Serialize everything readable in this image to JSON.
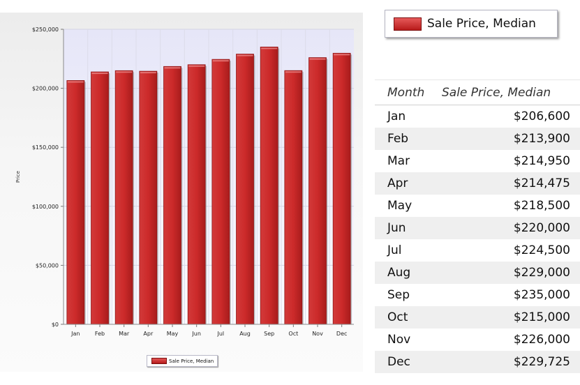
{
  "chart_data": {
    "type": "bar",
    "categories": [
      "Jan",
      "Feb",
      "Mar",
      "Apr",
      "May",
      "Jun",
      "Jul",
      "Aug",
      "Sep",
      "Oct",
      "Nov",
      "Dec"
    ],
    "series": [
      {
        "name": "Sale Price, Median",
        "values": [
          206600,
          213900,
          214950,
          214475,
          218500,
          220000,
          224500,
          229000,
          235000,
          215000,
          226000,
          229725
        ]
      }
    ],
    "ylabel": "Price",
    "yticks": [
      "$0",
      "$50,000",
      "$100,000",
      "$150,000",
      "$200,000",
      "$250,000"
    ],
    "ylim": [
      0,
      250000
    ],
    "grid": true,
    "legend": "bottom",
    "color": "#cc2a2a"
  },
  "legend": {
    "label": "Sale Price, Median"
  },
  "table": {
    "headers": [
      "Month",
      "Sale Price, Median"
    ],
    "rows": [
      [
        "Jan",
        "$206,600"
      ],
      [
        "Feb",
        "$213,900"
      ],
      [
        "Mar",
        "$214,950"
      ],
      [
        "Apr",
        "$214,475"
      ],
      [
        "May",
        "$218,500"
      ],
      [
        "Jun",
        "$220,000"
      ],
      [
        "Jul",
        "$224,500"
      ],
      [
        "Aug",
        "$229,000"
      ],
      [
        "Sep",
        "$235,000"
      ],
      [
        "Oct",
        "$215,000"
      ],
      [
        "Nov",
        "$226,000"
      ],
      [
        "Dec",
        "$229,725"
      ]
    ]
  }
}
